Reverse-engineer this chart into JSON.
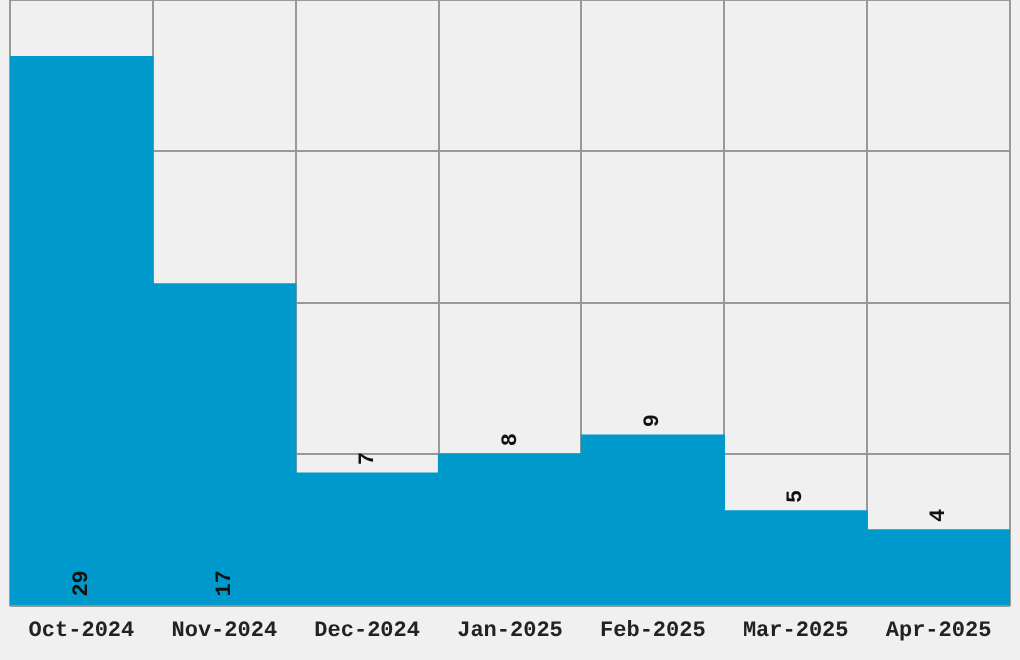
{
  "chart_data": {
    "type": "bar",
    "categories": [
      "Oct-2024",
      "Nov-2024",
      "Dec-2024",
      "Jan-2025",
      "Feb-2025",
      "Mar-2025",
      "Apr-2025"
    ],
    "values": [
      29,
      17,
      7,
      8,
      9,
      5,
      4
    ],
    "color": "#0099cc",
    "ylim": [
      0,
      32
    ],
    "yticks": [
      {
        "value": 0,
        "label": null
      },
      {
        "value": 8,
        "label": null
      },
      {
        "value": 16,
        "label": null
      },
      {
        "value": 24,
        "label": null
      },
      {
        "value": 32,
        "label": null
      }
    ],
    "tick_labels": "x",
    "grid": true,
    "data_labels": true
  }
}
